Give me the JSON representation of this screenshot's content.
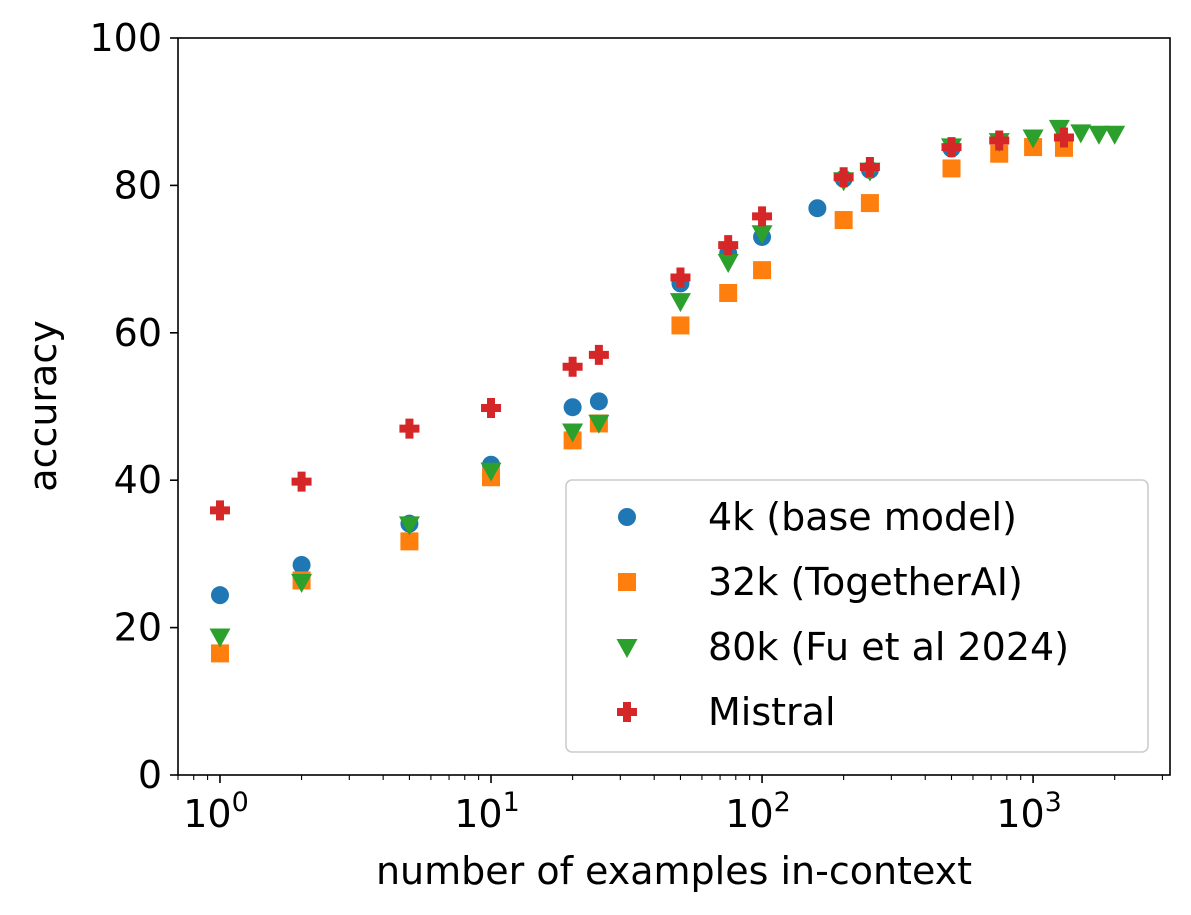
{
  "chart_data": {
    "type": "scatter",
    "title": "",
    "xlabel": "number of examples in-context",
    "ylabel": "accuracy",
    "x_scale": "log",
    "xlim": [
      0.7,
      3200
    ],
    "ylim": [
      0,
      100
    ],
    "x_ticks": [
      {
        "value": 1,
        "base": "10",
        "exp": "0"
      },
      {
        "value": 10,
        "base": "10",
        "exp": "1"
      },
      {
        "value": 100,
        "base": "10",
        "exp": "2"
      },
      {
        "value": 1000,
        "base": "10",
        "exp": "3"
      }
    ],
    "y_ticks": [
      "0",
      "20",
      "40",
      "60",
      "80",
      "100"
    ],
    "grid": false,
    "legend_position": "lower-right",
    "series": [
      {
        "name": "4k (base model)",
        "color": "#1f77b4",
        "marker": "circle",
        "points": [
          [
            1,
            24.4
          ],
          [
            2,
            28.5
          ],
          [
            5,
            34.1
          ],
          [
            10,
            42.1
          ],
          [
            20,
            49.9
          ],
          [
            25,
            50.7
          ],
          [
            50,
            66.7
          ],
          [
            75,
            70.8
          ],
          [
            100,
            73.0
          ],
          [
            160,
            76.9
          ],
          [
            200,
            80.9
          ],
          [
            250,
            82.1
          ],
          [
            500,
            85.0
          ]
        ]
      },
      {
        "name": "32k (TogetherAI)",
        "color": "#ff7f0e",
        "marker": "square",
        "points": [
          [
            1,
            16.5
          ],
          [
            2,
            26.4
          ],
          [
            5,
            31.7
          ],
          [
            10,
            40.4
          ],
          [
            20,
            45.4
          ],
          [
            25,
            47.7
          ],
          [
            50,
            61.0
          ],
          [
            75,
            65.4
          ],
          [
            100,
            68.5
          ],
          [
            200,
            75.3
          ],
          [
            250,
            77.6
          ],
          [
            500,
            82.3
          ],
          [
            750,
            84.3
          ],
          [
            1000,
            85.2
          ],
          [
            1300,
            85.1
          ]
        ]
      },
      {
        "name": "80k (Fu et al 2024)",
        "color": "#2ca02c",
        "marker": "triangle-down",
        "points": [
          [
            1,
            18.8
          ],
          [
            2,
            26.2
          ],
          [
            5,
            34.0
          ],
          [
            10,
            41.3
          ],
          [
            20,
            46.6
          ],
          [
            25,
            47.8
          ],
          [
            50,
            64.3
          ],
          [
            75,
            69.6
          ],
          [
            100,
            73.5
          ],
          [
            200,
            80.7
          ],
          [
            250,
            82.0
          ],
          [
            500,
            85.3
          ],
          [
            750,
            86.0
          ],
          [
            1000,
            86.5
          ],
          [
            1250,
            87.8
          ],
          [
            1500,
            87.2
          ],
          [
            1750,
            87.0
          ],
          [
            2000,
            87.0
          ]
        ]
      },
      {
        "name": "Mistral",
        "color": "#d62728",
        "marker": "plus",
        "points": [
          [
            1,
            35.9
          ],
          [
            2,
            39.8
          ],
          [
            5,
            47.0
          ],
          [
            10,
            49.8
          ],
          [
            20,
            55.4
          ],
          [
            25,
            57.0
          ],
          [
            50,
            67.5
          ],
          [
            75,
            71.9
          ],
          [
            100,
            75.8
          ],
          [
            200,
            81.1
          ],
          [
            250,
            82.5
          ],
          [
            500,
            85.2
          ],
          [
            750,
            86.1
          ],
          [
            1300,
            86.5
          ]
        ]
      }
    ]
  }
}
